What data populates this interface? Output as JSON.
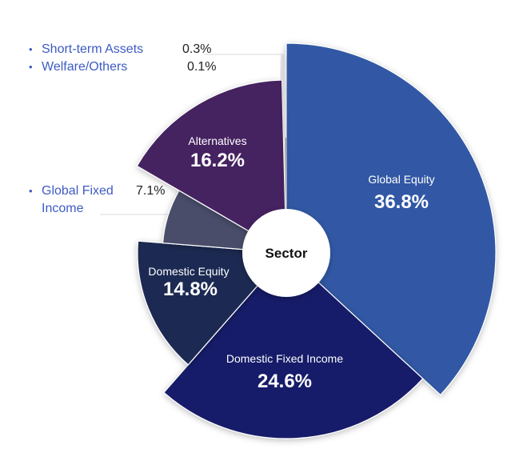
{
  "chart_data": {
    "type": "pie",
    "variant": "variable-radius donut (nightingale/rose)",
    "title": "",
    "center_label": "Sector",
    "categories": [
      "Global Equity",
      "Domestic Fixed Income",
      "Domestic Equity",
      "Global Fixed Income",
      "Alternatives",
      "Short-term Assets",
      "Welfare/Others"
    ],
    "values": [
      36.8,
      24.6,
      14.8,
      7.1,
      16.2,
      0.3,
      0.1
    ],
    "unit": "%",
    "slices": [
      {
        "name": "Global Equity",
        "value": 36.8,
        "label": "36.8%",
        "color": "#3058a5",
        "radius": 262
      },
      {
        "name": "Domestic Fixed Income",
        "value": 24.6,
        "label": "24.6%",
        "color": "#171c69",
        "radius": 232
      },
      {
        "name": "Domestic Equity",
        "value": 14.8,
        "label": "14.8%",
        "color": "#1f2a52",
        "radius": 186
      },
      {
        "name": "Global Fixed Income",
        "value": 7.1,
        "label": "7.1%",
        "color": "#494d6a",
        "radius": 155
      },
      {
        "name": "Alternatives",
        "value": 16.2,
        "label": "16.2%",
        "color": "#452460",
        "radius": 216
      },
      {
        "name": "Short-term Assets",
        "value": 0.3,
        "label": "0.3%",
        "color": "#d8d8dc",
        "radius": 249
      },
      {
        "name": "Welfare/Others",
        "value": 0.1,
        "label": "0.1%",
        "color": "#161616",
        "radius": 144
      }
    ],
    "legend_callouts": [
      {
        "name": "Short-term Assets",
        "value": "0.3%"
      },
      {
        "name": "Welfare/Others",
        "value": "0.1%"
      },
      {
        "name": "Global Fixed Income",
        "value": "7.1%"
      }
    ]
  },
  "labels": {
    "center": "Sector",
    "global_equity_name": "Global Equity",
    "global_equity_pct": "36.8%",
    "domestic_fixed_name": "Domestic Fixed Income",
    "domestic_fixed_pct": "24.6%",
    "domestic_equity_name": "Domestic Equity",
    "domestic_equity_pct": "14.8%",
    "alternatives_name": "Alternatives",
    "alternatives_pct": "16.2%"
  },
  "legend": {
    "bullet": "•",
    "items": [
      {
        "name": "Short-term Assets",
        "value": "0.3%"
      },
      {
        "name": "Welfare/Others",
        "value": "0.1%"
      },
      {
        "name": "Global Fixed",
        "name2": "Income",
        "value": "7.1%"
      }
    ]
  }
}
